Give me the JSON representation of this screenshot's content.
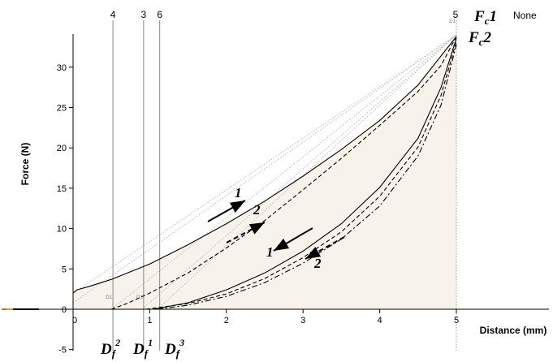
{
  "chart_data": {
    "type": "line",
    "title": "",
    "xlabel": "Distance (mm)",
    "ylabel": "Force (N)",
    "xlim": [
      -0.9,
      5.1
    ],
    "ylim": [
      -5.5,
      34.5
    ],
    "x_ticks": [
      0,
      1,
      2,
      3,
      4,
      5
    ],
    "y_ticks": [
      -5,
      0,
      5,
      10,
      15,
      20,
      25,
      30
    ],
    "grid": false,
    "legend": "none",
    "corner_label": "None",
    "vertical_markers": [
      {
        "label": "4",
        "x": 0.52
      },
      {
        "label": "3",
        "x": 0.92
      },
      {
        "label": "6",
        "x": 1.13
      },
      {
        "label": "5",
        "x": 5.0
      }
    ],
    "marker_tags": [
      {
        "label": "D1",
        "x": 0.52,
        "y": 1.5
      },
      {
        "label": "D1",
        "x": 0.92,
        "y": 1.5
      },
      {
        "label": "D1",
        "x": 5.0,
        "y": 35.7
      }
    ],
    "annotations": [
      {
        "id": "fc1",
        "base": "F",
        "sub": "c",
        "sup": "",
        "tail": "1"
      },
      {
        "id": "fc2",
        "base": "F",
        "sub": "c",
        "sup": "",
        "tail": "2"
      },
      {
        "id": "df2",
        "base": "D",
        "sub": "f",
        "sup": "2",
        "tail": ""
      },
      {
        "id": "df1",
        "base": "D",
        "sub": "f",
        "sup": "1",
        "tail": ""
      },
      {
        "id": "df3",
        "base": "D",
        "sub": "f",
        "sup": "3",
        "tail": ""
      },
      {
        "id": "load1",
        "text": "1"
      },
      {
        "id": "load2",
        "text": "2"
      },
      {
        "id": "unload1",
        "text": "1"
      },
      {
        "id": "unload2",
        "text": "2"
      }
    ],
    "series": [
      {
        "style": "solid",
        "x": [
          0,
          0.05,
          0.2,
          0.5,
          1.0,
          1.5,
          2.0,
          2.5,
          3.0,
          3.5,
          4.0,
          4.5,
          5.0
        ],
        "y": [
          2.0,
          2.4,
          2.8,
          3.7,
          5.6,
          8.0,
          10.6,
          13.4,
          16.5,
          19.8,
          23.4,
          27.8,
          33.8
        ]
      },
      {
        "style": "dashed",
        "x": [
          0.5,
          0.7,
          1.0,
          1.5,
          2.0,
          2.5,
          3.0,
          3.5,
          4.0,
          4.5,
          4.8,
          5.0
        ],
        "y": [
          0.0,
          0.7,
          2.0,
          4.5,
          7.6,
          11.0,
          14.8,
          18.7,
          22.8,
          27.0,
          30.2,
          33.8
        ]
      },
      {
        "style": "solid",
        "x": [
          1.05,
          1.5,
          2.0,
          2.5,
          3.0,
          3.5,
          4.0,
          4.5,
          4.8,
          5.0
        ],
        "y": [
          0.0,
          0.8,
          2.4,
          4.5,
          7.2,
          10.6,
          15.1,
          21.2,
          27.5,
          33.6
        ]
      },
      {
        "style": "dashed",
        "x": [
          0.95,
          1.5,
          2.0,
          2.5,
          3.0,
          3.5,
          4.0,
          4.5,
          4.8,
          5.0
        ],
        "y": [
          0.0,
          0.7,
          1.9,
          3.8,
          6.4,
          9.6,
          14.0,
          20.1,
          26.5,
          33.2
        ]
      },
      {
        "style": "dashdot",
        "x": [
          1.1,
          1.5,
          2.0,
          2.5,
          3.0,
          3.5,
          4.0,
          4.5,
          4.8,
          5.0
        ],
        "y": [
          0.0,
          0.5,
          1.6,
          3.3,
          5.7,
          8.7,
          12.8,
          19.0,
          25.3,
          32.8
        ]
      }
    ],
    "reference_lines": [
      {
        "x": [
          0,
          5.0
        ],
        "y": [
          2.0,
          34.0
        ]
      },
      {
        "x": [
          0,
          5.0
        ],
        "y": [
          0.8,
          34.0
        ]
      },
      {
        "x": [
          0.5,
          5.0
        ],
        "y": [
          0.0,
          34.0
        ]
      },
      {
        "x": [
          0.9,
          5.0
        ],
        "y": [
          0.0,
          34.0
        ]
      },
      {
        "x": [
          1.1,
          5.0
        ],
        "y": [
          0.0,
          34.0
        ]
      }
    ],
    "colors": {
      "series": "#000000",
      "reference": "#bbbbbb",
      "marker": "#999999",
      "shade": "#f7f3ea",
      "x_stub": "#e0a020"
    }
  }
}
